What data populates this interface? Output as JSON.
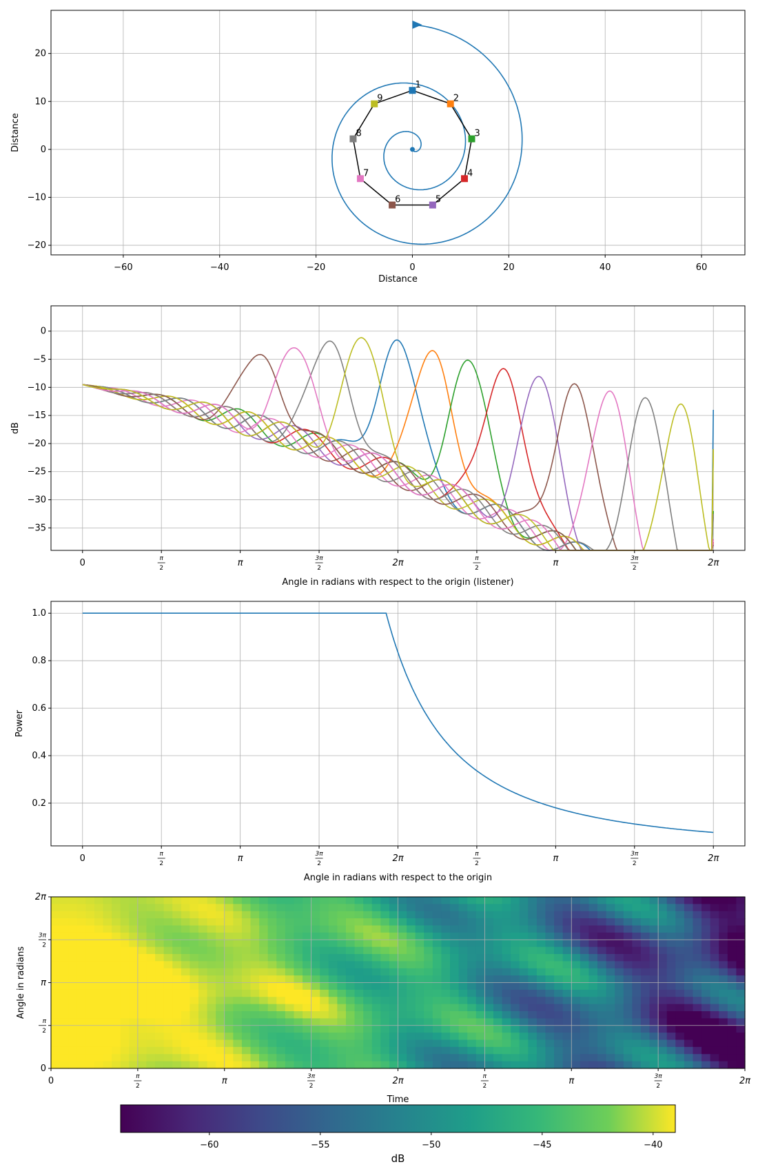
{
  "chart_data": [
    {
      "type": "scatter",
      "xlabel": "Distance",
      "ylabel": "Distance",
      "xlim": [
        -75,
        69
      ],
      "ylim": [
        -22,
        29
      ],
      "xticks": [
        -60,
        -40,
        -20,
        0,
        20,
        40,
        60
      ],
      "yticks": [
        -20,
        -10,
        0,
        10,
        20
      ],
      "xtick_labels": [
        "−60",
        "−40",
        "−20",
        "0",
        "20",
        "40",
        "60"
      ],
      "ytick_labels": [
        "−20",
        "−10",
        "0",
        "10",
        "20"
      ],
      "grid": true,
      "spiral": {
        "color": "#1f77b4",
        "start": [
          0,
          0
        ],
        "end": [
          0,
          26
        ]
      },
      "speakers": [
        {
          "label": "1",
          "x": 0.0,
          "y": 12.3,
          "color": "#1f77b4"
        },
        {
          "label": "2",
          "x": 7.9,
          "y": 9.5,
          "color": "#ff7f0e"
        },
        {
          "label": "3",
          "x": 12.3,
          "y": 2.2,
          "color": "#2ca02c"
        },
        {
          "label": "4",
          "x": 10.8,
          "y": -6.1,
          "color": "#d62728"
        },
        {
          "label": "5",
          "x": 4.2,
          "y": -11.6,
          "color": "#9467bd"
        },
        {
          "label": "6",
          "x": -4.2,
          "y": -11.6,
          "color": "#8c564b"
        },
        {
          "label": "7",
          "x": -10.8,
          "y": -6.1,
          "color": "#e377c2"
        },
        {
          "label": "8",
          "x": -12.3,
          "y": 2.2,
          "color": "#7f7f7f"
        },
        {
          "label": "9",
          "x": -7.9,
          "y": 9.5,
          "color": "#bcbd22"
        }
      ]
    },
    {
      "type": "line",
      "xlabel": "Angle in radians with respect to the origin (listener)",
      "ylabel": "dB",
      "xlim": [
        -0.4,
        8.4
      ],
      "ylim": [
        -39,
        4.5
      ],
      "xtick_labels": [
        "0",
        "π/2",
        "π",
        "3π/2",
        "2π",
        "π/2",
        "π",
        "3π/2",
        "2π"
      ],
      "yticks": [
        0,
        -5,
        -10,
        -15,
        -20,
        -25,
        -30,
        -35
      ],
      "ytick_labels": [
        "0",
        "−5",
        "−10",
        "−15",
        "−20",
        "−25",
        "−30",
        "−35"
      ],
      "grid": true,
      "start_value": -9.5,
      "series": [
        {
          "color": "#1f77b4",
          "peak_x": 4.0,
          "peak_db": -1.6,
          "end_db": -14
        },
        {
          "color": "#ff7f0e",
          "peak_x": 4.45,
          "peak_db": -3.5,
          "end_db": -21
        },
        {
          "color": "#2ca02c",
          "peak_x": 4.9,
          "peak_db": -5.2,
          "end_db": -32
        },
        {
          "color": "#d62728",
          "peak_x": 5.35,
          "peak_db": -6.7,
          "end_db": -37.5
        },
        {
          "color": "#9467bd",
          "peak_x": 5.8,
          "peak_db": -8.1,
          "end_db": -38
        },
        {
          "color": "#8c564b",
          "peak_x": 6.25,
          "peak_db": -9.4,
          "end_db": -39
        },
        {
          "color": "#e377c2",
          "peak_x": 6.7,
          "peak_db": -10.7,
          "end_db": -37
        },
        {
          "color": "#7f7f7f",
          "peak_x": 7.15,
          "peak_db": -11.9,
          "end_db": -32.5
        },
        {
          "color": "#bcbd22",
          "peak_x": 7.6,
          "peak_db": -13.0,
          "end_db": -21
        },
        {
          "color": "#8c564b",
          "peak_x": 2.27,
          "peak_db": -4.2,
          "end_db": -38
        },
        {
          "color": "#7f7f7f",
          "peak_x": 3.15,
          "peak_db": -1.8,
          "end_db": -33
        },
        {
          "color": "#e377c2",
          "peak_x": 2.7,
          "peak_db": -3.0,
          "end_db": -37
        },
        {
          "color": "#bcbd22",
          "peak_x": 3.55,
          "peak_db": -1.2,
          "end_db": -21
        }
      ]
    },
    {
      "type": "line",
      "xlabel": "Angle in radians with respect to the origin",
      "ylabel": "Power",
      "xlim": [
        -0.4,
        8.4
      ],
      "ylim": [
        0.02,
        1.05
      ],
      "xtick_labels": [
        "0",
        "π/2",
        "π",
        "3π/2",
        "2π",
        "π/2",
        "π",
        "3π/2",
        "2π"
      ],
      "yticks": [
        0.2,
        0.4,
        0.6,
        0.8,
        1.0
      ],
      "ytick_labels": [
        "0.2",
        "0.4",
        "0.6",
        "0.8",
        "1.0"
      ],
      "grid": true,
      "series": [
        {
          "color": "#1f77b4",
          "flat_value": 1.0,
          "knee_x": 3.85,
          "end_x": 8.0,
          "end_value": 0.055
        }
      ]
    },
    {
      "type": "heatmap",
      "xlabel": "Time",
      "ylabel": "Angle in radians",
      "colormap": "viridis",
      "xtick_labels": [
        "0",
        "π/2",
        "π",
        "3π/2",
        "2π",
        "π/2",
        "π",
        "3π/2",
        "2π"
      ],
      "ytick_labels": [
        "0",
        "π/2",
        "π",
        "3π/2",
        "2π"
      ],
      "grid": true,
      "colorbar": {
        "label": "dB",
        "range": [
          -64,
          -39
        ],
        "ticks": [
          -60,
          -55,
          -50,
          -45,
          -40
        ],
        "tick_labels": [
          "−60",
          "−55",
          "−50",
          "−45",
          "−40"
        ]
      }
    }
  ]
}
